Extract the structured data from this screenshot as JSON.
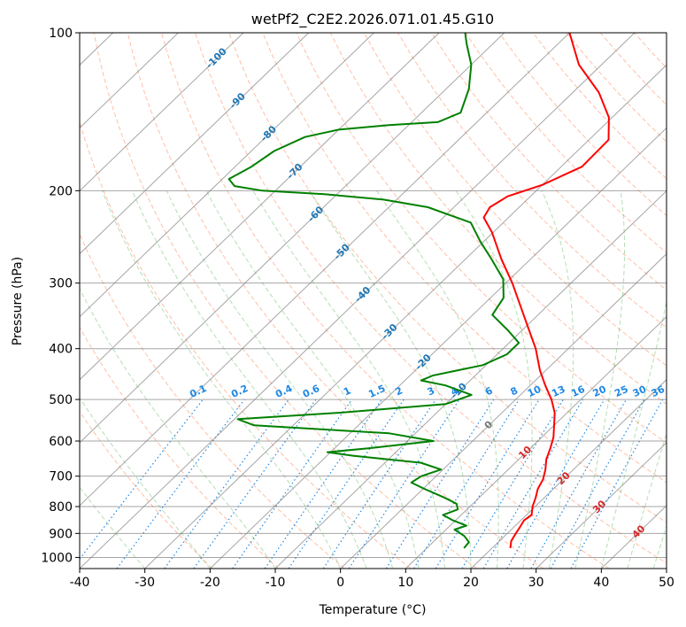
{
  "chart_data": {
    "type": "skew-t",
    "title": "wetPf2_C2E2.2026.071.01.45.G10",
    "xlabel": "Temperature (°C)",
    "ylabel": "Pressure (hPa)",
    "xlim": [
      -40,
      50
    ],
    "ylim": [
      1050,
      100
    ],
    "x_ticks": [
      -40,
      -30,
      -20,
      -10,
      0,
      10,
      20,
      30,
      40,
      50
    ],
    "y_ticks": [
      100,
      200,
      300,
      400,
      500,
      600,
      700,
      800,
      900,
      1000
    ],
    "y_scale": "log",
    "grid": true,
    "series": [
      {
        "color": "#ff0000",
        "points": [
          {
            "p": 960,
            "t": 22.8
          },
          {
            "p": 930,
            "t": 21.8
          },
          {
            "p": 900,
            "t": 21.3
          },
          {
            "p": 880,
            "t": 21.0
          },
          {
            "p": 850,
            "t": 20.5
          },
          {
            "p": 830,
            "t": 20.8
          },
          {
            "p": 800,
            "t": 19.6
          },
          {
            "p": 770,
            "t": 18.7
          },
          {
            "p": 740,
            "t": 17.6
          },
          {
            "p": 710,
            "t": 16.9
          },
          {
            "p": 680,
            "t": 15.7
          },
          {
            "p": 650,
            "t": 14.2
          },
          {
            "p": 620,
            "t": 13.1
          },
          {
            "p": 590,
            "t": 11.8
          },
          {
            "p": 560,
            "t": 10.0
          },
          {
            "p": 530,
            "t": 8.1
          },
          {
            "p": 500,
            "t": 5.5
          },
          {
            "p": 470,
            "t": 2.3
          },
          {
            "p": 440,
            "t": -0.9
          },
          {
            "p": 400,
            "t": -5.0
          },
          {
            "p": 350,
            "t": -11.5
          },
          {
            "p": 300,
            "t": -19.0
          },
          {
            "p": 270,
            "t": -24.5
          },
          {
            "p": 240,
            "t": -30.2
          },
          {
            "p": 225,
            "t": -33.8
          },
          {
            "p": 215,
            "t": -34.5
          },
          {
            "p": 205,
            "t": -33.5
          },
          {
            "p": 195,
            "t": -30.0
          },
          {
            "p": 180,
            "t": -26.8
          },
          {
            "p": 160,
            "t": -27.0
          },
          {
            "p": 145,
            "t": -30.5
          },
          {
            "p": 130,
            "t": -36.0
          },
          {
            "p": 115,
            "t": -43.5
          },
          {
            "p": 100,
            "t": -50.0
          }
        ]
      },
      {
        "color": "#008000",
        "points": [
          {
            "p": 960,
            "t": 15.7
          },
          {
            "p": 935,
            "t": 15.5
          },
          {
            "p": 910,
            "t": 13.8
          },
          {
            "p": 885,
            "t": 11.3
          },
          {
            "p": 870,
            "t": 12.5
          },
          {
            "p": 850,
            "t": 9.6
          },
          {
            "p": 830,
            "t": 7.2
          },
          {
            "p": 810,
            "t": 8.6
          },
          {
            "p": 790,
            "t": 7.5
          },
          {
            "p": 770,
            "t": 4.8
          },
          {
            "p": 740,
            "t": 0.2
          },
          {
            "p": 720,
            "t": -2.8
          },
          {
            "p": 700,
            "t": -2.3
          },
          {
            "p": 680,
            "t": -0.3
          },
          {
            "p": 660,
            "t": -4.5
          },
          {
            "p": 640,
            "t": -16.0
          },
          {
            "p": 630,
            "t": -20.5
          },
          {
            "p": 620,
            "t": -15.0
          },
          {
            "p": 600,
            "t": -6.0
          },
          {
            "p": 580,
            "t": -14.0
          },
          {
            "p": 560,
            "t": -36.0
          },
          {
            "p": 545,
            "t": -39.5
          },
          {
            "p": 530,
            "t": -25.0
          },
          {
            "p": 510,
            "t": -10.0
          },
          {
            "p": 490,
            "t": -7.5
          },
          {
            "p": 470,
            "t": -13.0
          },
          {
            "p": 460,
            "t": -17.5
          },
          {
            "p": 450,
            "t": -16.5
          },
          {
            "p": 430,
            "t": -10.5
          },
          {
            "p": 410,
            "t": -8.5
          },
          {
            "p": 390,
            "t": -8.5
          },
          {
            "p": 370,
            "t": -12.0
          },
          {
            "p": 345,
            "t": -17.0
          },
          {
            "p": 320,
            "t": -18.0
          },
          {
            "p": 295,
            "t": -21.0
          },
          {
            "p": 270,
            "t": -26.0
          },
          {
            "p": 250,
            "t": -30.5
          },
          {
            "p": 230,
            "t": -35.0
          },
          {
            "p": 215,
            "t": -44.0
          },
          {
            "p": 208,
            "t": -52.0
          },
          {
            "p": 203,
            "t": -62.0
          },
          {
            "p": 200,
            "t": -72.0
          },
          {
            "p": 196,
            "t": -77.0
          },
          {
            "p": 190,
            "t": -79.0
          },
          {
            "p": 180,
            "t": -77.5
          },
          {
            "p": 168,
            "t": -76.5
          },
          {
            "p": 158,
            "t": -74.0
          },
          {
            "p": 153,
            "t": -70.0
          },
          {
            "p": 150,
            "t": -63.0
          },
          {
            "p": 148,
            "t": -56.0
          },
          {
            "p": 142,
            "t": -54.0
          },
          {
            "p": 128,
            "t": -56.5
          },
          {
            "p": 115,
            "t": -60.0
          },
          {
            "p": 105,
            "t": -64.0
          },
          {
            "p": 100,
            "t": -66.0
          }
        ]
      }
    ],
    "isotherms": [
      -100,
      -90,
      -80,
      -70,
      -60,
      -50,
      -40,
      -30,
      -20,
      -10,
      0,
      10,
      20,
      30,
      40
    ],
    "mixing_ratio_labels": [
      "0.1",
      "0.2",
      "0.4",
      "0.6",
      "1",
      "1.5",
      "2",
      "3",
      "4",
      "6",
      "8",
      "10",
      "13",
      "16",
      "20",
      "25",
      "30",
      "36"
    ],
    "moist_adiabat_labels": [
      "0",
      "10",
      "20",
      "30",
      "40"
    ],
    "colors": {
      "temperature": "#ff0000",
      "dewpoint": "#008000",
      "isotherm_label": "#1f77b4",
      "mixing_ratio": "#1e88e5",
      "dry_adiabat": "#ff7f50",
      "moist_adiabat": "#2ca02c",
      "moist_label": "#d62728",
      "grid": "#808080"
    }
  }
}
